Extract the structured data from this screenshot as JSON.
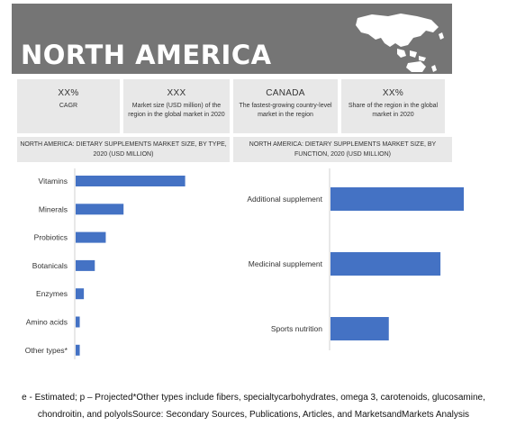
{
  "header": {
    "title": "NORTH AMERICA"
  },
  "stats": [
    {
      "value": "XX%",
      "label": "CAGR"
    },
    {
      "value": "XXX",
      "label": "Market size (USD million) of the region in the global market in 2020"
    },
    {
      "value": "CANADA",
      "label": "The fastest-growing country-level market in the region"
    },
    {
      "value": "XX%",
      "label": "Share of the region in the global market in 2020"
    }
  ],
  "charts": {
    "left_title": "NORTH AMERICA: DIETARY SUPPLEMENTS MARKET SIZE, BY TYPE, 2020 (USD MILLION)",
    "right_title": "NORTH AMERICA: DIETARY SUPPLEMENTS MARKET SIZE, BY FUNCTION, 2020 (USD MILLION)"
  },
  "footnote": "e - Estimated; p – Projected*Other types include fibers, specialtycarbohydrates, omega 3, carotenoids, glucosamine, chondroitin, and polyolsSource: Secondary Sources, Publications, Articles, and MarketsandMarkets Analysis",
  "colors": {
    "bar": "#4472c4",
    "banner": "#757575",
    "panel": "#e8e8e8"
  },
  "chart_data": [
    {
      "type": "bar",
      "orientation": "horizontal",
      "title": "NORTH AMERICA: DIETARY SUPPLEMENTS MARKET SIZE, BY TYPE, 2020 (USD MILLION)",
      "categories": [
        "Vitamins",
        "Minerals",
        "Probiotics",
        "Botanicals",
        "Enzymes",
        "Amino acids",
        "Other types*"
      ],
      "values": [
        40,
        17.5,
        11,
        7,
        3,
        1.5,
        1.5
      ],
      "xlim": [
        0,
        50
      ],
      "axis_labels_visible": false,
      "grid": false
    },
    {
      "type": "bar",
      "orientation": "horizontal",
      "title": "NORTH AMERICA: DIETARY SUPPLEMENTS MARKET SIZE, BY FUNCTION, 2020 (USD MILLION)",
      "categories": [
        "Additional supplement",
        "Medicinal supplement",
        "Sports nutrition"
      ],
      "values": [
        40,
        33,
        17.5
      ],
      "xlim": [
        0,
        50
      ],
      "axis_labels_visible": false,
      "grid": false
    }
  ]
}
